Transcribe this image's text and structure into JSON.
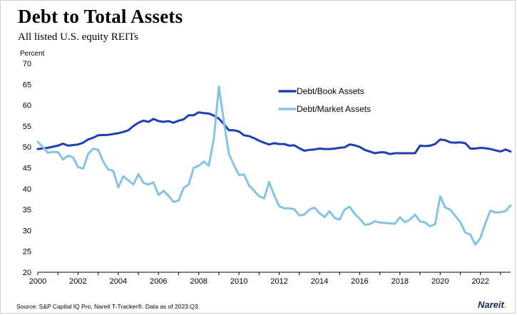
{
  "header": {
    "title": "Debt to Total Assets",
    "subtitle": "All listed U.S. equity REITs",
    "units": "Percent"
  },
  "footer": {
    "source": "Source: S&P Capital IQ Pro, Nareit T-Tracker®. Data as of 2023:Q3.",
    "logo_text": "Nareit",
    "logo_dot": "."
  },
  "colors": {
    "book": "#1f3faf",
    "market": "#86c3e3",
    "axis": "#000000",
    "logo_accent": "#e6a21b"
  },
  "chart_data": {
    "type": "line",
    "title": "Debt to Total Assets",
    "subtitle": "All listed U.S. equity REITs",
    "ylabel": "Percent",
    "xlabel": "",
    "xlim": [
      2000,
      2023.5
    ],
    "ylim": [
      20,
      70
    ],
    "yticks": [
      20,
      25,
      30,
      35,
      40,
      45,
      50,
      55,
      60,
      65,
      70
    ],
    "xticks": [
      2000,
      2002,
      2004,
      2006,
      2008,
      2010,
      2012,
      2014,
      2016,
      2018,
      2020,
      2022
    ],
    "grid": false,
    "legend_position": "top-right",
    "series": [
      {
        "name": "Debt/Book Assets",
        "color": "#1f3faf",
        "x": [
          2000,
          2000.5,
          2001,
          2001.25,
          2001.5,
          2002,
          2002.25,
          2002.5,
          2002.75,
          2003,
          2003.5,
          2004,
          2004.25,
          2004.5,
          2004.75,
          2005,
          2005.25,
          2005.5,
          2005.75,
          2006,
          2006.25,
          2006.5,
          2006.75,
          2007,
          2007.25,
          2007.5,
          2007.75,
          2008,
          2008.25,
          2008.5,
          2008.75,
          2009,
          2009.25,
          2009.5,
          2009.75,
          2010,
          2010.25,
          2010.5,
          2010.75,
          2011,
          2011.25,
          2011.5,
          2011.75,
          2012,
          2012.25,
          2012.5,
          2012.75,
          2013,
          2013.25,
          2013.5,
          2013.75,
          2014,
          2014.25,
          2014.5,
          2014.75,
          2015,
          2015.25,
          2015.5,
          2015.75,
          2016,
          2016.25,
          2016.5,
          2016.75,
          2017,
          2017.25,
          2017.5,
          2017.75,
          2018,
          2018.25,
          2018.5,
          2018.75,
          2019,
          2019.25,
          2019.5,
          2019.75,
          2020,
          2020.25,
          2020.5,
          2020.75,
          2021,
          2021.25,
          2021.5,
          2021.75,
          2022,
          2022.25,
          2022.5,
          2022.75,
          2023,
          2023.25,
          2023.5
        ],
        "values": [
          49.5,
          49.8,
          50.3,
          50.8,
          50.3,
          50.6,
          51.0,
          51.8,
          52.2,
          52.8,
          52.9,
          53.3,
          53.6,
          54.0,
          55.0,
          55.8,
          56.3,
          56.0,
          56.7,
          56.2,
          56.0,
          56.2,
          55.8,
          56.3,
          56.6,
          57.6,
          57.6,
          58.3,
          58.1,
          58.0,
          57.5,
          56.8,
          55.5,
          54.0,
          54.0,
          53.7,
          52.8,
          52.6,
          52.1,
          51.5,
          51.0,
          50.6,
          50.9,
          50.7,
          50.7,
          50.3,
          50.4,
          49.7,
          49.1,
          49.3,
          49.4,
          49.6,
          49.5,
          49.5,
          49.6,
          49.8,
          49.9,
          50.6,
          50.4,
          50.0,
          49.3,
          48.9,
          48.5,
          48.7,
          48.7,
          48.3,
          48.5,
          48.5,
          48.5,
          48.5,
          48.5,
          50.3,
          50.2,
          50.3,
          50.7,
          51.8,
          51.6,
          51.1,
          51.0,
          51.1,
          50.9,
          49.6,
          49.6,
          49.8,
          49.7,
          49.5,
          49.2,
          48.9,
          49.4,
          48.9
        ]
      },
      {
        "name": "Debt/Market Assets",
        "color": "#86c3e3",
        "x": [
          2000,
          2000.25,
          2000.5,
          2000.75,
          2001,
          2001.25,
          2001.5,
          2001.75,
          2002,
          2002.25,
          2002.5,
          2002.75,
          2003,
          2003.25,
          2003.5,
          2003.75,
          2004,
          2004.25,
          2004.5,
          2004.75,
          2005,
          2005.25,
          2005.5,
          2005.75,
          2006,
          2006.25,
          2006.5,
          2006.75,
          2007,
          2007.25,
          2007.5,
          2007.75,
          2008,
          2008.25,
          2008.5,
          2008.75,
          2009,
          2009.25,
          2009.5,
          2009.75,
          2010,
          2010.25,
          2010.5,
          2010.75,
          2011,
          2011.25,
          2011.5,
          2011.75,
          2012,
          2012.25,
          2012.5,
          2012.75,
          2013,
          2013.25,
          2013.5,
          2013.75,
          2014,
          2014.25,
          2014.5,
          2014.75,
          2015,
          2015.25,
          2015.5,
          2015.75,
          2016,
          2016.25,
          2016.5,
          2016.75,
          2017,
          2017.25,
          2017.5,
          2017.75,
          2018,
          2018.25,
          2018.5,
          2018.75,
          2019,
          2019.25,
          2019.5,
          2019.75,
          2020,
          2020.25,
          2020.5,
          2020.75,
          2021,
          2021.25,
          2021.5,
          2021.75,
          2022,
          2022.25,
          2022.5,
          2022.75,
          2023,
          2023.25,
          2023.5
        ],
        "values": [
          51.2,
          50.0,
          48.6,
          48.8,
          48.8,
          47.0,
          47.9,
          47.5,
          45.2,
          44.8,
          48.3,
          49.6,
          49.3,
          46.5,
          44.6,
          44.3,
          40.3,
          43.0,
          42.0,
          41.0,
          43.5,
          41.4,
          41.0,
          41.5,
          38.5,
          39.5,
          38.3,
          36.8,
          37.2,
          40.2,
          41.0,
          45.0,
          45.5,
          46.5,
          45.5,
          52.0,
          64.5,
          56.0,
          48.3,
          45.7,
          43.3,
          43.4,
          40.8,
          39.5,
          38.2,
          37.7,
          41.6,
          38.4,
          35.8,
          35.3,
          35.3,
          35.1,
          33.6,
          33.8,
          35.0,
          35.5,
          34.2,
          33.2,
          34.6,
          33.0,
          32.6,
          35.0,
          35.7,
          34.0,
          32.8,
          31.4,
          31.5,
          32.2,
          31.9,
          31.8,
          31.7,
          31.6,
          33.2,
          32.0,
          32.6,
          33.8,
          32.2,
          31.9,
          31.0,
          31.5,
          38.2,
          35.5,
          35.0,
          33.5,
          32.0,
          29.5,
          29.0,
          26.6,
          28.2,
          31.8,
          34.8,
          34.3,
          34.4,
          34.6,
          36.0
        ]
      }
    ]
  }
}
